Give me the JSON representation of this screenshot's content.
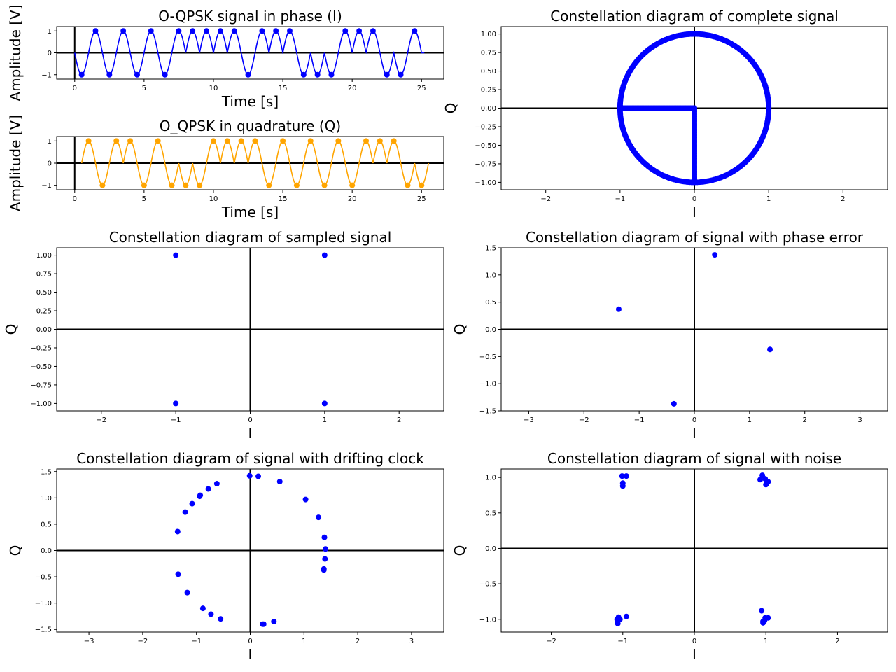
{
  "colors": {
    "blue": "#0000ff",
    "orange": "#ffa500",
    "axis": "#000000"
  },
  "chart_data": [
    {
      "id": "i",
      "type": "line",
      "title": "O-QPSK signal in phase (I)",
      "xlabel": "Time [s]",
      "ylabel": "Amplitude [V]",
      "xlim": [
        -1.3,
        26.6
      ],
      "ylim": [
        -1.2,
        1.2
      ],
      "xticks": [
        0,
        5,
        10,
        15,
        20,
        25
      ],
      "yticks": [
        -1,
        0,
        1
      ],
      "x_range": [
        0,
        25.2
      ],
      "bits": [
        -1,
        1,
        -1,
        1,
        -1,
        1,
        -1,
        1,
        1,
        1,
        1,
        1,
        -1,
        1,
        1,
        1,
        -1,
        -1,
        -1,
        1,
        1,
        1,
        -1,
        -1,
        1
      ],
      "markers_x": [
        0.5,
        1.5,
        2.5,
        3.5,
        4.5,
        5.5,
        6.5,
        7.5,
        8.5,
        9.5,
        10.5,
        11.5,
        12.5,
        13.5,
        14.5,
        15.5,
        16.5,
        17.5,
        18.5,
        19.5,
        20.5,
        21.5,
        22.5,
        23.5,
        24.5
      ],
      "color": "blue"
    },
    {
      "id": "q",
      "type": "line",
      "title": "O_QPSK in quadrature (Q)",
      "xlabel": "Time [s]",
      "ylabel": "Amplitude [V]",
      "xlim": [
        -1.3,
        26.6
      ],
      "ylim": [
        -1.2,
        1.2
      ],
      "xticks": [
        0,
        5,
        10,
        15,
        20,
        25
      ],
      "yticks": [
        -1,
        0,
        1
      ],
      "x_range": [
        0.5,
        25.5
      ],
      "bits": [
        1,
        -1,
        1,
        1,
        -1,
        1,
        -1,
        -1,
        -1,
        1,
        1,
        1,
        1,
        -1,
        1,
        -1,
        1,
        -1,
        1,
        -1,
        1,
        1,
        1,
        -1,
        -1
      ],
      "markers_x": [
        1,
        2,
        3,
        4,
        5,
        6,
        7,
        8,
        9,
        10,
        11,
        12,
        13,
        14,
        15,
        16,
        17,
        18,
        19,
        20,
        21,
        22,
        23,
        24,
        25
      ],
      "color": "orange"
    },
    {
      "id": "complete",
      "type": "scatter",
      "title": "Constellation diagram of complete signal",
      "xlabel": "I",
      "ylabel": "Q",
      "xlim": [
        -2.6,
        2.6
      ],
      "ylim": [
        -1.1,
        1.1
      ],
      "xticks": [
        -2,
        -1,
        0,
        1,
        2
      ],
      "yticks": [
        -1.0,
        -0.75,
        -0.5,
        -0.25,
        0.0,
        0.25,
        0.5,
        0.75,
        1.0
      ],
      "ytick_labels": [
        "−1.00",
        "−0.75",
        "−0.50",
        "−0.25",
        "0.00",
        "0.25",
        "0.50",
        "0.75",
        "1.00"
      ],
      "shapes": [
        {
          "kind": "circle",
          "radius": 1.0,
          "points": 300
        },
        {
          "kind": "segment",
          "from": [
            -1,
            0
          ],
          "to": [
            0,
            0
          ],
          "points": 60
        },
        {
          "kind": "segment",
          "from": [
            0,
            0
          ],
          "to": [
            0,
            -1
          ],
          "points": 60
        }
      ],
      "color": "blue"
    },
    {
      "id": "sampled",
      "type": "scatter",
      "title": "Constellation diagram of sampled signal",
      "xlabel": "I",
      "ylabel": "Q",
      "xlim": [
        -2.6,
        2.6
      ],
      "ylim": [
        -1.1,
        1.1
      ],
      "xticks": [
        -2,
        -1,
        0,
        1,
        2
      ],
      "yticks": [
        -1.0,
        -0.75,
        -0.5,
        -0.25,
        0.0,
        0.25,
        0.5,
        0.75,
        1.0
      ],
      "ytick_labels": [
        "−1.00",
        "−0.75",
        "−0.50",
        "−0.25",
        "0.00",
        "0.25",
        "0.50",
        "0.75",
        "1.00"
      ],
      "points": [
        [
          -1,
          1
        ],
        [
          1,
          1
        ],
        [
          -1,
          -1
        ],
        [
          1,
          -1
        ]
      ],
      "color": "blue"
    },
    {
      "id": "phase",
      "type": "scatter",
      "title": "Constellation diagram of signal with phase error",
      "xlabel": "I",
      "ylabel": "Q",
      "xlim": [
        -3.5,
        3.5
      ],
      "ylim": [
        -1.5,
        1.5
      ],
      "xticks": [
        -3,
        -2,
        -1,
        0,
        1,
        2,
        3
      ],
      "yticks": [
        -1.5,
        -1.0,
        -0.5,
        0.0,
        0.5,
        1.0,
        1.5
      ],
      "ytick_labels": [
        "−1.5",
        "−1.0",
        "−0.5",
        "0.0",
        "0.5",
        "1.0",
        "1.5"
      ],
      "points": [
        [
          0.37,
          1.37
        ],
        [
          -1.37,
          0.37
        ],
        [
          1.37,
          -0.37
        ],
        [
          -0.37,
          -1.37
        ]
      ],
      "color": "blue"
    },
    {
      "id": "drift",
      "type": "scatter",
      "title": "Constellation diagram of signal with drifting clock",
      "xlabel": "I",
      "ylabel": "Q",
      "xlim": [
        -3.6,
        3.6
      ],
      "ylim": [
        -1.55,
        1.55
      ],
      "xticks": [
        -3,
        -2,
        -1,
        0,
        1,
        2,
        3
      ],
      "yticks": [
        -1.5,
        -1.0,
        -0.5,
        0.0,
        0.5,
        1.0,
        1.5
      ],
      "ytick_labels": [
        "−1.5",
        "−1.0",
        "−0.5",
        "0.0",
        "0.5",
        "1.0",
        "1.5"
      ],
      "points": [
        [
          -0.01,
          1.42
        ],
        [
          0.15,
          1.41
        ],
        [
          0.55,
          1.31
        ],
        [
          1.03,
          0.97
        ],
        [
          1.27,
          0.63
        ],
        [
          1.38,
          0.25
        ],
        [
          1.4,
          0.03
        ],
        [
          1.39,
          -0.16
        ],
        [
          1.37,
          -0.35
        ],
        [
          1.37,
          -0.37
        ],
        [
          0.44,
          -1.35
        ],
        [
          0.25,
          -1.4
        ],
        [
          0.23,
          -1.4
        ],
        [
          -0.55,
          -1.3
        ],
        [
          -0.73,
          -1.21
        ],
        [
          -0.88,
          -1.1
        ],
        [
          -1.17,
          -0.8
        ],
        [
          -1.34,
          -0.45
        ],
        [
          -1.35,
          0.36
        ],
        [
          -1.21,
          0.73
        ],
        [
          -1.08,
          0.89
        ],
        [
          -0.94,
          1.03
        ],
        [
          -0.93,
          1.05
        ],
        [
          -0.78,
          1.17
        ],
        [
          -0.62,
          1.27
        ]
      ],
      "color": "blue"
    },
    {
      "id": "noise",
      "type": "scatter",
      "title": "Constellation diagram of signal with noise",
      "xlabel": "I",
      "ylabel": "Q",
      "xlim": [
        -2.7,
        2.7
      ],
      "ylim": [
        -1.18,
        1.12
      ],
      "xticks": [
        -2,
        -1,
        0,
        1,
        2
      ],
      "yticks": [
        -1.0,
        -0.5,
        0.0,
        0.5,
        1.0
      ],
      "ytick_labels": [
        "−1.0",
        "−0.5",
        "0.0",
        "0.5",
        "1.0"
      ],
      "points": [
        [
          -1.01,
          1.02
        ],
        [
          -0.95,
          1.02
        ],
        [
          -1.0,
          0.92
        ],
        [
          -1.0,
          0.88
        ],
        [
          0.95,
          1.03
        ],
        [
          0.92,
          0.97
        ],
        [
          0.99,
          0.98
        ],
        [
          1.03,
          0.94
        ],
        [
          1.01,
          0.91
        ],
        [
          1.0,
          0.9
        ],
        [
          -1.06,
          -0.97
        ],
        [
          -1.08,
          -1.0
        ],
        [
          -1.04,
          -1.0
        ],
        [
          -1.07,
          -1.06
        ],
        [
          -0.95,
          -0.96
        ],
        [
          0.94,
          -0.88
        ],
        [
          0.96,
          -1.05
        ],
        [
          0.96,
          -1.03
        ],
        [
          0.99,
          -0.98
        ],
        [
          1.03,
          -0.98
        ],
        [
          0.98,
          -1.02
        ]
      ],
      "color": "blue"
    }
  ]
}
